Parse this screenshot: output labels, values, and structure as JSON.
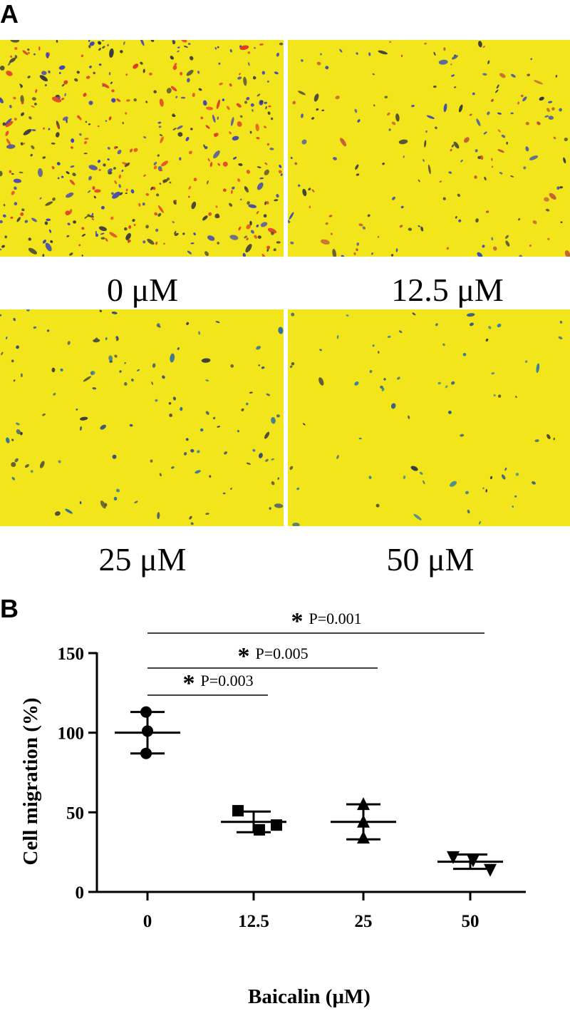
{
  "panel_a": {
    "letter": "A",
    "images": [
      {
        "label": "0 μM",
        "density": "high",
        "stain_colors": [
          "#3b3fb8",
          "#e03a2a",
          "#3a3a3a"
        ]
      },
      {
        "label": "12.5 μM",
        "density": "medium",
        "stain_colors": [
          "#3b4fb0",
          "#3a3a3a",
          "#c0503a"
        ]
      },
      {
        "label": "25 μM",
        "density": "low",
        "stain_colors": [
          "#2e6fa0",
          "#2f4a7a",
          "#3a3a3a"
        ]
      },
      {
        "label": "50 μM",
        "density": "very-low",
        "stain_colors": [
          "#2e7fa0",
          "#2f5a8a",
          "#3a3a3a"
        ]
      }
    ],
    "background_color": "#f2e51c"
  },
  "panel_b": {
    "letter": "B"
  },
  "chart_data": {
    "type": "scatter",
    "xlabel": "Baicalin (μM)",
    "ylabel": "Cell migration (%)",
    "categories": [
      "0",
      "12.5",
      "25",
      "50"
    ],
    "ylim": [
      0,
      150
    ],
    "yticks": [
      0,
      50,
      100,
      150
    ],
    "groups": [
      {
        "category": "0",
        "marker": "circle",
        "points": [
          113,
          101,
          87
        ],
        "mean": 100,
        "sd_low": 87,
        "sd_high": 113
      },
      {
        "category": "12.5",
        "marker": "square",
        "points": [
          51,
          39,
          42
        ],
        "mean": 44,
        "sd_low": 37.5,
        "sd_high": 50.5
      },
      {
        "category": "25",
        "marker": "triangle-up",
        "points": [
          55,
          44,
          34
        ],
        "mean": 44,
        "sd_low": 33,
        "sd_high": 55
      },
      {
        "category": "50",
        "marker": "triangle-down",
        "points": [
          22,
          20,
          14
        ],
        "mean": 19,
        "sd_low": 14.5,
        "sd_high": 23.5
      }
    ],
    "annotations": [
      {
        "from": "0",
        "to": "12.5",
        "symbol": "*",
        "text": "P=0.003"
      },
      {
        "from": "0",
        "to": "25",
        "symbol": "*",
        "text": "P=0.005"
      },
      {
        "from": "0",
        "to": "50",
        "symbol": "*",
        "text": "P=0.001"
      }
    ],
    "grid": false,
    "legend": "none"
  }
}
